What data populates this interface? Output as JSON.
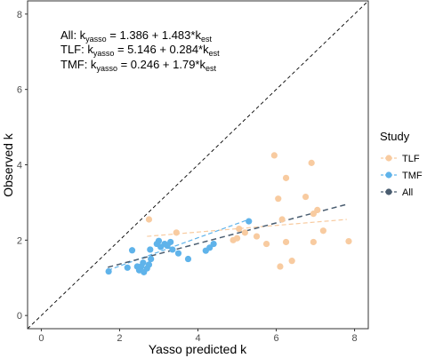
{
  "chart_data": {
    "type": "scatter",
    "xlabel": "Yasso predicted k",
    "ylabel": "Observed k",
    "xlim": [
      -0.35,
      8.35
    ],
    "ylim": [
      -0.35,
      8.35
    ],
    "x_ticks": [
      "0",
      "2",
      "4",
      "6",
      "8"
    ],
    "y_ticks": [
      "0",
      "2",
      "4",
      "6",
      "8"
    ],
    "grid": false,
    "legend": {
      "title": "Study",
      "position": "right",
      "entries": [
        "TLF",
        "TMF",
        "All"
      ]
    },
    "colors": {
      "TLF": "#f8cba0",
      "TMF": "#5fb3ea",
      "All": "#4a5d70",
      "one_to_one": "#000000"
    },
    "annotations": [
      {
        "prefix": "All: k",
        "sub1": "yasso",
        "mid": " = 1.386 + 1.483*k",
        "sub2": "est"
      },
      {
        "prefix": "TLF: k",
        "sub1": "yasso",
        "mid": " = 5.146 + 0.284*k",
        "sub2": "est"
      },
      {
        "prefix": "TMF: k",
        "sub1": "yasso",
        "mid": " = 0.246 + 1.79*k",
        "sub2": "est"
      }
    ],
    "reference_line": {
      "type": "1:1",
      "style": "dashed"
    },
    "series": [
      {
        "name": "TLF",
        "points": [
          [
            2.75,
            2.55
          ],
          [
            3.45,
            2.2
          ],
          [
            5.0,
            2.05
          ],
          [
            5.2,
            2.2
          ],
          [
            5.05,
            2.3
          ],
          [
            4.9,
            2.0
          ],
          [
            5.5,
            2.1
          ],
          [
            5.75,
            1.9
          ],
          [
            5.95,
            4.25
          ],
          [
            6.05,
            3.1
          ],
          [
            6.25,
            3.65
          ],
          [
            6.15,
            2.55
          ],
          [
            6.25,
            1.95
          ],
          [
            6.1,
            1.3
          ],
          [
            6.4,
            1.45
          ],
          [
            6.75,
            3.15
          ],
          [
            6.9,
            4.05
          ],
          [
            6.95,
            2.7
          ],
          [
            7.05,
            2.8
          ],
          [
            6.95,
            1.95
          ],
          [
            7.2,
            2.25
          ],
          [
            7.85,
            1.97
          ]
        ],
        "fit": {
          "x": [
            2.7,
            7.8
          ],
          "y": [
            2.1,
            2.55
          ]
        }
      },
      {
        "name": "TMF",
        "points": [
          [
            1.72,
            1.17
          ],
          [
            2.2,
            1.27
          ],
          [
            2.32,
            1.73
          ],
          [
            2.45,
            1.3
          ],
          [
            2.55,
            1.3
          ],
          [
            2.6,
            1.4
          ],
          [
            2.5,
            1.2
          ],
          [
            2.62,
            1.15
          ],
          [
            2.7,
            1.25
          ],
          [
            2.75,
            1.35
          ],
          [
            2.8,
            1.5
          ],
          [
            2.78,
            1.75
          ],
          [
            2.95,
            1.9
          ],
          [
            3.0,
            1.98
          ],
          [
            3.05,
            1.82
          ],
          [
            3.15,
            1.9
          ],
          [
            3.22,
            1.85
          ],
          [
            3.3,
            1.95
          ],
          [
            3.35,
            1.75
          ],
          [
            3.5,
            1.65
          ],
          [
            3.75,
            1.5
          ],
          [
            4.2,
            1.72
          ],
          [
            4.3,
            1.8
          ],
          [
            4.4,
            1.9
          ],
          [
            5.3,
            2.5
          ]
        ],
        "fit": {
          "x": [
            1.7,
            5.3
          ],
          "y": [
            1.2,
            2.55
          ]
        }
      },
      {
        "name": "All",
        "points": [],
        "fit": {
          "x": [
            1.7,
            7.8
          ],
          "y": [
            1.28,
            2.95
          ]
        }
      }
    ]
  }
}
